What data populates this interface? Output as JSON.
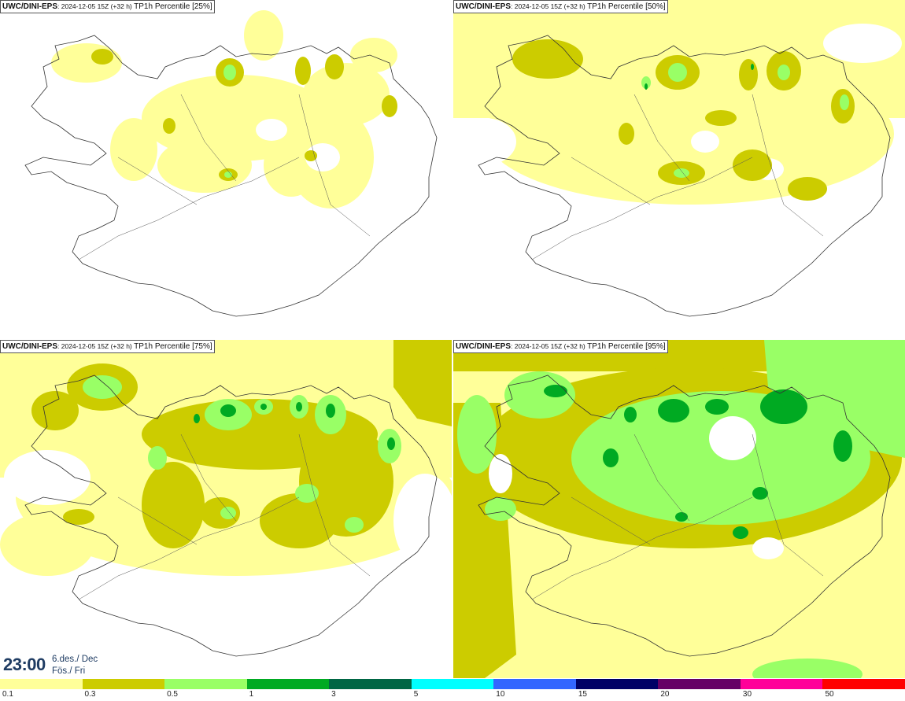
{
  "panels": [
    {
      "model": "UWC/DINI-EPS",
      "run": "2024-12-05 15Z (+32 h)",
      "field": "TP1h Percentile [25%]"
    },
    {
      "model": "UWC/DINI-EPS",
      "run": "2024-12-05 15Z (+32 h)",
      "field": "TP1h Percentile [50%]"
    },
    {
      "model": "UWC/DINI-EPS",
      "run": "2024-12-05 15Z (+32 h)",
      "field": "TP1h Percentile [75%]"
    },
    {
      "model": "UWC/DINI-EPS",
      "run": "2024-12-05 15Z (+32 h)",
      "field": "TP1h Percentile [95%]"
    }
  ],
  "valid_time": "23:00",
  "valid_date_line1": "6.des./ Dec",
  "valid_date_line2": "Fös./ Fri",
  "legend": {
    "colors": [
      "#ffff99",
      "#cccc00",
      "#99ff66",
      "#00aa22",
      "#006644",
      "#00ffff",
      "#3366ff",
      "#000066",
      "#660066",
      "#ff0099",
      "#ff0000"
    ],
    "labels": [
      "0.1",
      "0.3",
      "0.5",
      "1",
      "3",
      "5",
      "10",
      "15",
      "20",
      "30",
      "50"
    ]
  }
}
